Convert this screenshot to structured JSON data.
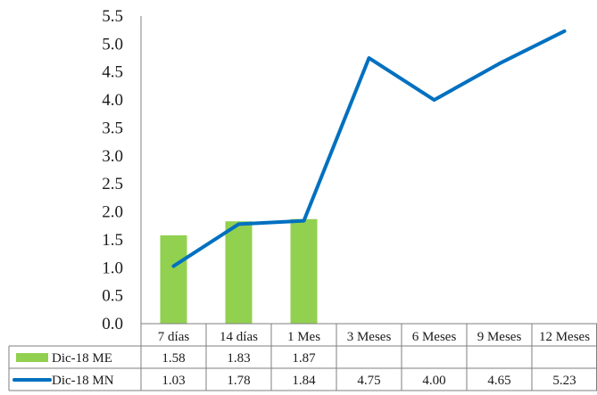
{
  "chart_data": {
    "type": "bar+line",
    "categories": [
      "7 días",
      "14 días",
      "1 Mes",
      "3 Meses",
      "6 Meses",
      "9 Meses",
      "12 Meses"
    ],
    "series": [
      {
        "name": "Dic-18 ME",
        "type": "bar",
        "color": "#92d050",
        "values": [
          1.58,
          1.83,
          1.87,
          null,
          null,
          null,
          null
        ],
        "labels": [
          "1.58",
          "1.83",
          "1.87",
          "",
          "",
          "",
          ""
        ]
      },
      {
        "name": "Dic-18 MN",
        "type": "line",
        "color": "#0070c0",
        "values": [
          1.03,
          1.78,
          1.84,
          4.75,
          4.0,
          4.65,
          5.23
        ],
        "labels": [
          "1.03",
          "1.78",
          "1.84",
          "4.75",
          "4.00",
          "4.65",
          "5.23"
        ]
      }
    ],
    "ylim": [
      0,
      5.5
    ],
    "yticks": [
      "0.0",
      "0.5",
      "1.0",
      "1.5",
      "2.0",
      "2.5",
      "3.0",
      "3.5",
      "4.0",
      "4.5",
      "5.0",
      "5.5"
    ],
    "grid": false,
    "legend": "data-table"
  }
}
